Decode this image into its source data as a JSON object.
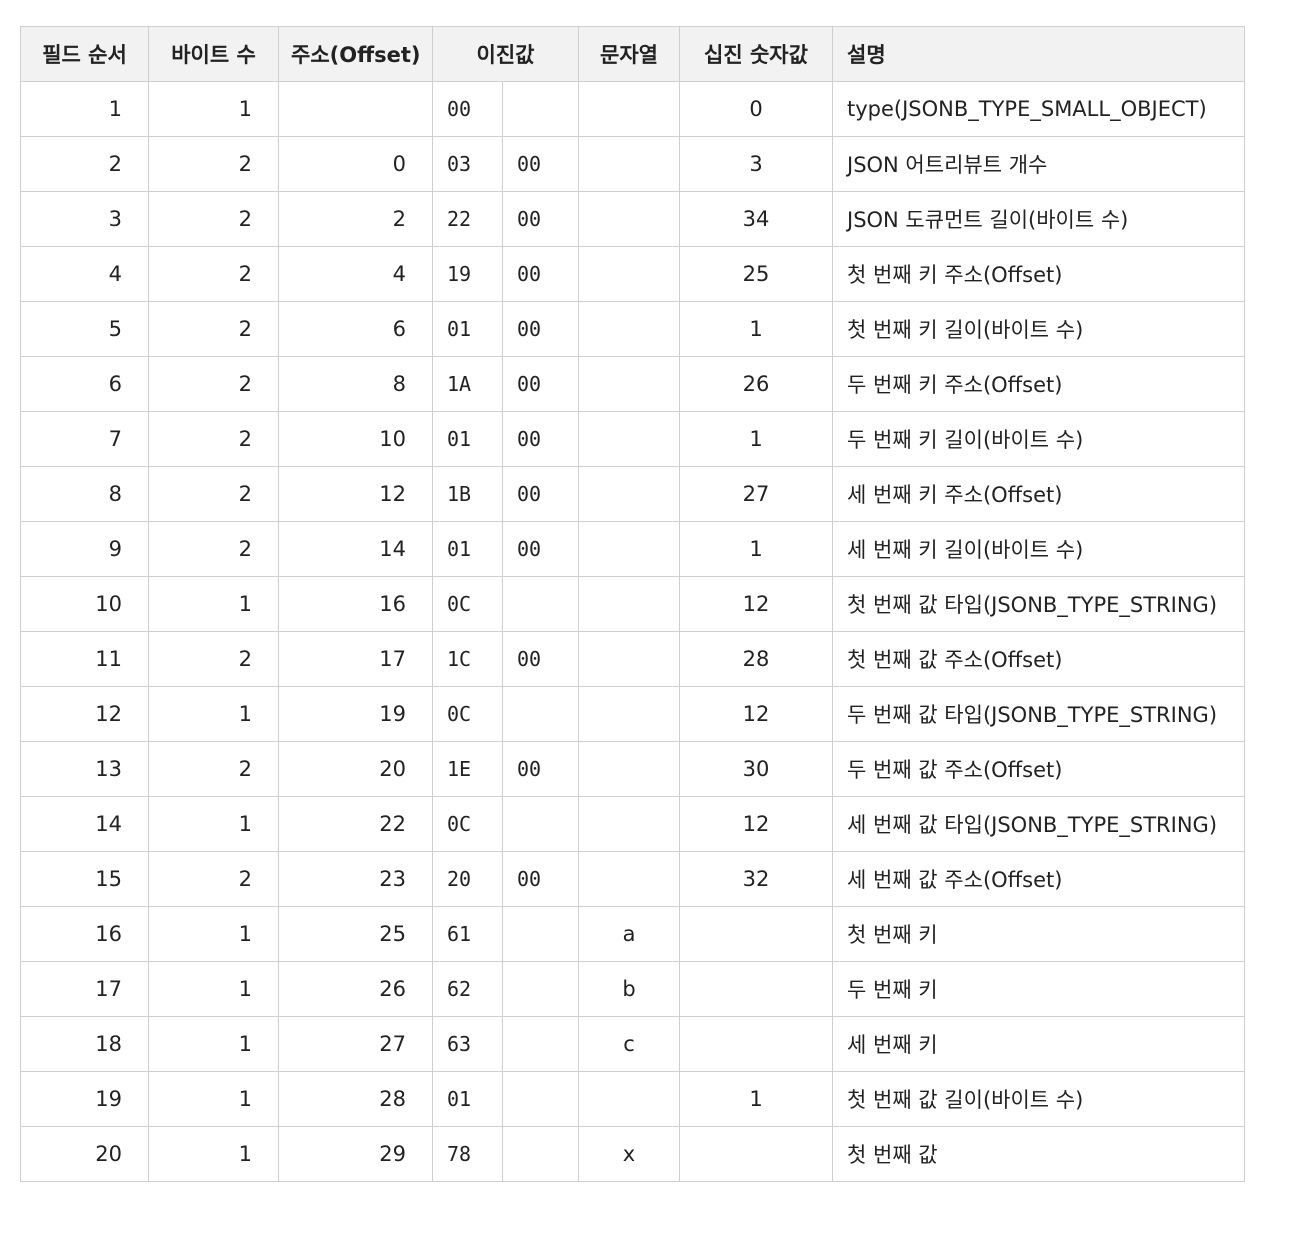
{
  "headers": {
    "seq": "필드 순서",
    "bytes": "바이트 수",
    "offset": "주소(Offset)",
    "binary": "이진값",
    "string": "문자열",
    "decimal": "십진 숫자값",
    "desc": "설명"
  },
  "rows": [
    {
      "seq": "1",
      "bytes": "1",
      "offset": "",
      "b1": "00",
      "b2": "",
      "str": "",
      "dec": "0",
      "desc": "type(JSONB_TYPE_SMALL_OBJECT)"
    },
    {
      "seq": "2",
      "bytes": "2",
      "offset": "0",
      "b1": "03",
      "b2": "00",
      "str": "",
      "dec": "3",
      "desc": "JSON 어트리뷰트 개수"
    },
    {
      "seq": "3",
      "bytes": "2",
      "offset": "2",
      "b1": "22",
      "b2": "00",
      "str": "",
      "dec": "34",
      "desc": "JSON 도큐먼트 길이(바이트 수)"
    },
    {
      "seq": "4",
      "bytes": "2",
      "offset": "4",
      "b1": "19",
      "b2": "00",
      "str": "",
      "dec": "25",
      "desc": "첫 번째 키 주소(Offset)"
    },
    {
      "seq": "5",
      "bytes": "2",
      "offset": "6",
      "b1": "01",
      "b2": "00",
      "str": "",
      "dec": "1",
      "desc": "첫 번째 키 길이(바이트 수)"
    },
    {
      "seq": "6",
      "bytes": "2",
      "offset": "8",
      "b1": "1A",
      "b2": "00",
      "str": "",
      "dec": "26",
      "desc": "두 번째 키 주소(Offset)"
    },
    {
      "seq": "7",
      "bytes": "2",
      "offset": "10",
      "b1": "01",
      "b2": "00",
      "str": "",
      "dec": "1",
      "desc": "두 번째 키 길이(바이트 수)"
    },
    {
      "seq": "8",
      "bytes": "2",
      "offset": "12",
      "b1": "1B",
      "b2": "00",
      "str": "",
      "dec": "27",
      "desc": "세 번째 키 주소(Offset)"
    },
    {
      "seq": "9",
      "bytes": "2",
      "offset": "14",
      "b1": "01",
      "b2": "00",
      "str": "",
      "dec": "1",
      "desc": "세 번째 키 길이(바이트 수)"
    },
    {
      "seq": "10",
      "bytes": "1",
      "offset": "16",
      "b1": "0C",
      "b2": "",
      "str": "",
      "dec": "12",
      "desc": "첫 번째 값 타입(JSONB_TYPE_STRING)"
    },
    {
      "seq": "11",
      "bytes": "2",
      "offset": "17",
      "b1": "1C",
      "b2": "00",
      "str": "",
      "dec": "28",
      "desc": "첫 번째 값 주소(Offset)"
    },
    {
      "seq": "12",
      "bytes": "1",
      "offset": "19",
      "b1": "0C",
      "b2": "",
      "str": "",
      "dec": "12",
      "desc": "두 번째 값 타입(JSONB_TYPE_STRING)"
    },
    {
      "seq": "13",
      "bytes": "2",
      "offset": "20",
      "b1": "1E",
      "b2": "00",
      "str": "",
      "dec": "30",
      "desc": "두 번째 값 주소(Offset)"
    },
    {
      "seq": "14",
      "bytes": "1",
      "offset": "22",
      "b1": "0C",
      "b2": "",
      "str": "",
      "dec": "12",
      "desc": "세 번째 값 타입(JSONB_TYPE_STRING)"
    },
    {
      "seq": "15",
      "bytes": "2",
      "offset": "23",
      "b1": "20",
      "b2": "00",
      "str": "",
      "dec": "32",
      "desc": "세 번째 값 주소(Offset)"
    },
    {
      "seq": "16",
      "bytes": "1",
      "offset": "25",
      "b1": "61",
      "b2": "",
      "str": "a",
      "dec": "",
      "desc": "첫 번째 키"
    },
    {
      "seq": "17",
      "bytes": "1",
      "offset": "26",
      "b1": "62",
      "b2": "",
      "str": "b",
      "dec": "",
      "desc": "두 번째 키"
    },
    {
      "seq": "18",
      "bytes": "1",
      "offset": "27",
      "b1": "63",
      "b2": "",
      "str": "c",
      "dec": "",
      "desc": "세 번째 키"
    },
    {
      "seq": "19",
      "bytes": "1",
      "offset": "28",
      "b1": "01",
      "b2": "",
      "str": "",
      "dec": "1",
      "desc": "첫 번째 값 길이(바이트 수)"
    },
    {
      "seq": "20",
      "bytes": "1",
      "offset": "29",
      "b1": "78",
      "b2": "",
      "str": "x",
      "dec": "",
      "desc": "첫 번째 값"
    }
  ]
}
